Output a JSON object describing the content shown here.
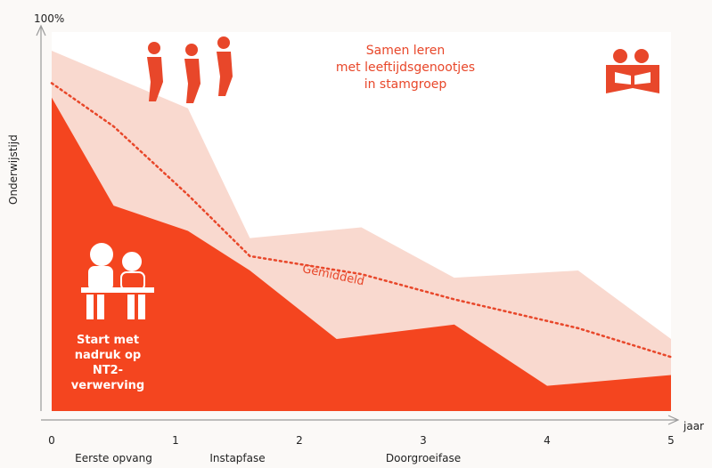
{
  "chart_data": {
    "type": "area",
    "y_top_label": "100%",
    "ylabel": "Onderwijstijd",
    "xlabel": "jaar",
    "x_ticks": [
      "0",
      "1",
      "2",
      "3",
      "4",
      "5"
    ],
    "xlim": [
      0,
      5
    ],
    "ylim": [
      0,
      100
    ],
    "phases": [
      {
        "label": "Eerste opvang",
        "x": 0.5
      },
      {
        "label": "Instapfase",
        "x": 1.5
      },
      {
        "label": "Doorgroeifase",
        "x": 3.0
      }
    ],
    "series": [
      {
        "role": "upper-band",
        "color": "#f9d9cf",
        "x": [
          0,
          1.1,
          1.6,
          2.5,
          3.25,
          4.25,
          5.0
        ],
        "values": [
          100,
          84,
          48,
          51,
          37,
          39,
          20
        ]
      },
      {
        "role": "average",
        "name": "Gemiddeld",
        "style": "dotted",
        "color": "#e8472a",
        "x": [
          0,
          0.5,
          1.1,
          1.6,
          2.5,
          3.25,
          4.25,
          5.0
        ],
        "values": [
          91,
          79,
          60,
          43,
          38,
          31,
          23,
          15
        ]
      },
      {
        "role": "lower-band",
        "color": "#f4451f",
        "x": [
          0,
          0.5,
          1.1,
          1.6,
          2.3,
          3.25,
          4.0,
          5.0
        ],
        "values": [
          87,
          57,
          50,
          39,
          20,
          24,
          7,
          10
        ]
      }
    ],
    "annotations": {
      "top": [
        "Samen leren",
        "met leeftijdsgenootjes",
        "in stamgroep"
      ],
      "left": [
        "Start met",
        "nadruk op",
        "NT2-",
        "verwerving"
      ]
    },
    "colors": {
      "accent": "#e8472a",
      "upper_band": "#f9d9cf",
      "lower_band": "#f4451f"
    }
  },
  "icons": {
    "walking_group": "walking-people-icon",
    "reading": "reading-children-icon",
    "classroom": "teacher-student-icon"
  }
}
